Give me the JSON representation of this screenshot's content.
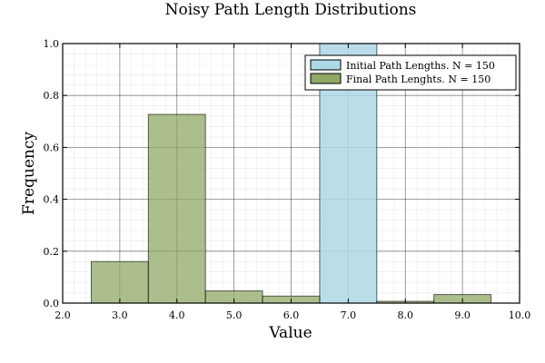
{
  "chart_data": {
    "type": "bar",
    "title": "Noisy Path Length Distributions",
    "xlabel": "Value",
    "ylabel": "Frequency",
    "xlim": [
      2.0,
      10.0
    ],
    "ylim": [
      0.0,
      1.0
    ],
    "x_ticks": [
      "2.0",
      "3.0",
      "4.0",
      "5.0",
      "6.0",
      "7.0",
      "8.0",
      "9.0",
      "10.0"
    ],
    "y_ticks": [
      "0.0",
      "0.2",
      "0.4",
      "0.6",
      "0.8",
      "1.0"
    ],
    "grid": true,
    "legend_position": "top-right",
    "series": [
      {
        "name": "Initial Path Lengths. N = 150",
        "color": "#add8e6",
        "bins": [
          {
            "x0": 6.5,
            "x1": 7.5,
            "value": 1.0
          }
        ]
      },
      {
        "name": "Final Path Lenghts. N = 150",
        "color": "#8fa865",
        "bins": [
          {
            "x0": 2.5,
            "x1": 3.5,
            "value": 0.16
          },
          {
            "x0": 3.5,
            "x1": 4.5,
            "value": 0.727
          },
          {
            "x0": 4.5,
            "x1": 5.5,
            "value": 0.047
          },
          {
            "x0": 5.5,
            "x1": 6.5,
            "value": 0.027
          },
          {
            "x0": 7.5,
            "x1": 8.5,
            "value": 0.007
          },
          {
            "x0": 8.5,
            "x1": 9.5,
            "value": 0.033
          }
        ]
      }
    ]
  }
}
